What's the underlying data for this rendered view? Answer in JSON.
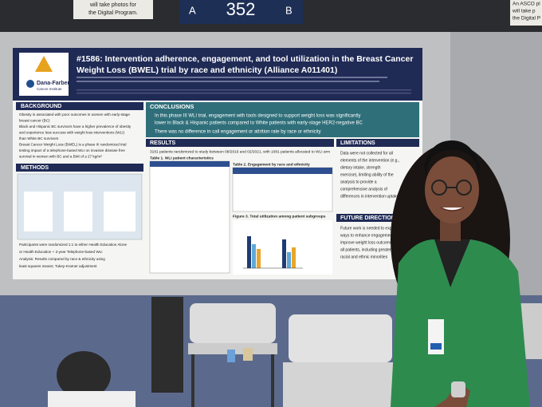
{
  "sign": {
    "letter_left": "A",
    "number": "352",
    "letter_right": "B",
    "note_left": [
      "will take photos for",
      "the Digital Program."
    ],
    "note_right": [
      "An ASCO pl",
      "will take p",
      "the Digital P"
    ]
  },
  "poster": {
    "title_lines": [
      "#1586: Intervention adherence, engagement, and tool utilization in the Breast Cancer",
      "Weight Loss (BWEL) trial by race and ethnicity (Alliance A011401)"
    ],
    "institution": [
      "Dana-Farber",
      "Cancer Institute"
    ],
    "sections": {
      "background": "BACKGROUND",
      "methods": "METHODS",
      "conclusions": "CONCLUSIONS",
      "results": "RESULTS",
      "limitations": "LIMITATIONS",
      "future": "FUTURE DIRECTIONS"
    },
    "background_lines": [
      "Obesity is associated with poor outcomes in women with early-stage",
      "breast cancer (BC)",
      "Black and Hispanic BC survivors have a higher prevalence of obesity",
      "and experience less success with weight loss interventions (WLI)",
      "than White BC survivors",
      "Breast Cancer Weight Loss (BWEL) is a phase III randomized trial",
      "testing impact of a telephone-based WLI on invasive disease free",
      "survival in women with BC and a BMI of ≥ 27 kg/m²"
    ],
    "conclusion_lines": [
      "In this phase III WLI trial, engagement with tools designed to support weight loss was significantly",
      "lower in Black & Hispanic patients compared to White patients with early-stage HER2-negative BC",
      "There was no difference in call engagement or attrition rate by race or ethnicity"
    ],
    "results_intro": "3181 patients randomized to study between 08/2016 and 02/2021, with 1081 patients allocated to WLI arm",
    "table1": "Table 1. WLI patient characteristics",
    "table2": "Table 2. Engagement by race and ethnicity",
    "figure3": "Figure 3. Total utilization among patient subgroups",
    "limitation_lines": [
      "Data were not collected for all",
      "elements of the intervention (e.g.,",
      "dietary intake, strength",
      "exercise), limiting ability of the",
      "analysis to provide a",
      "comprehensive analysis of",
      "differences in intervention uptake"
    ],
    "future_lines": [
      "Future work is needed to explore",
      "ways to enhance engagement and",
      "improve weight loss outcomes for",
      "all patients, including greater",
      "racial and ethnic minorities"
    ],
    "methods_lines": [
      "Participants were randomized 1:1 to either Health Education Alone",
      "or Health Education + 2-year Telephone-based WLI",
      "Analysis: Results compared by race & ethnicity using",
      "least squares means; Tukey-Kramer adjustment"
    ]
  }
}
